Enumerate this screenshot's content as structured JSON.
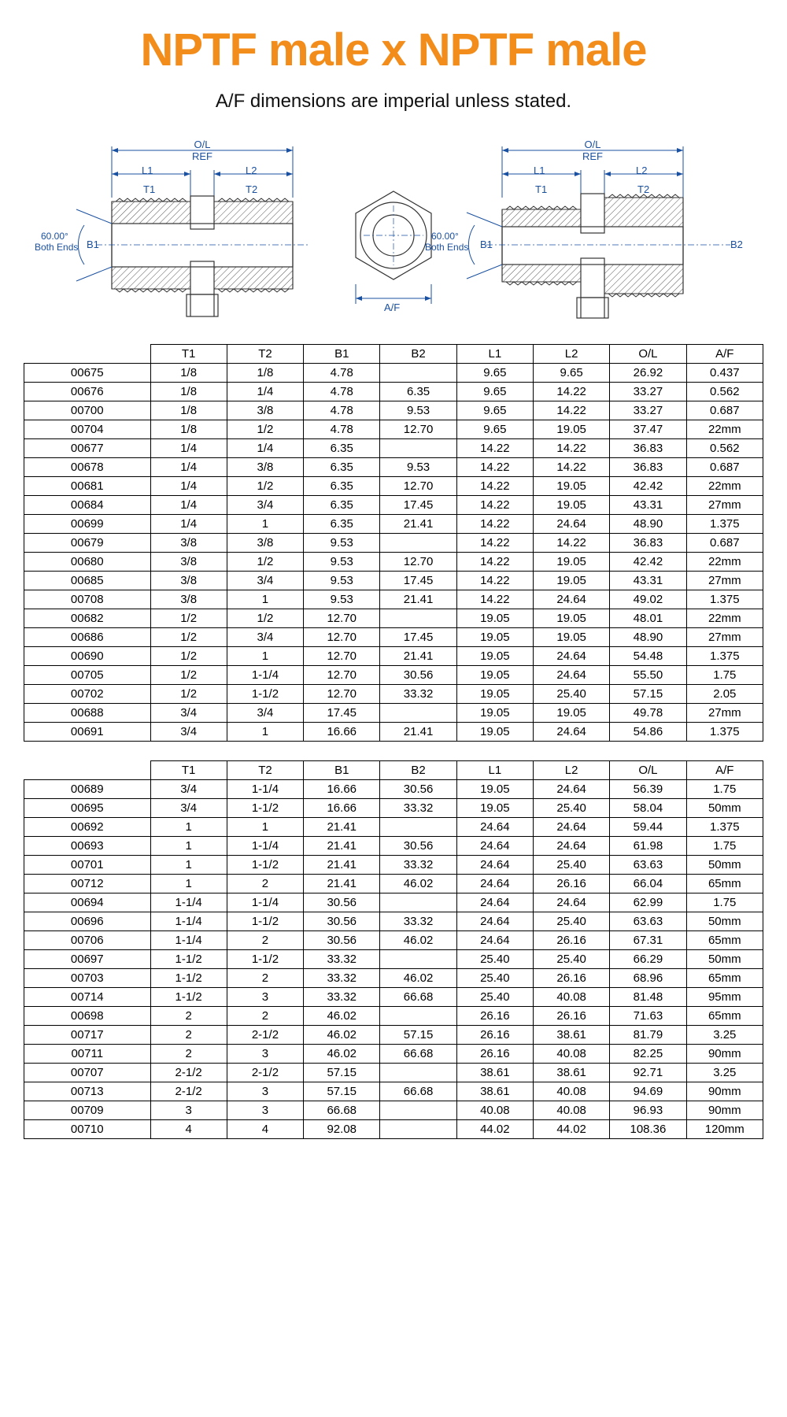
{
  "title": "NPTF male x NPTF male",
  "subtitle": "A/F dimensions are imperial unless stated.",
  "colors": {
    "title": "#f28c1a",
    "text": "#111111",
    "diagram_line": "#1a50a0",
    "border": "#000000",
    "background": "#ffffff"
  },
  "typography": {
    "title_fontsize": 58,
    "title_weight": 800,
    "subtitle_fontsize": 24,
    "table_fontsize": 15,
    "diagram_label_fontsize": 13
  },
  "diagram_labels": {
    "ol_ref": "O/L\nREF",
    "l1": "L1",
    "l2": "L2",
    "t1": "T1",
    "t2": "T2",
    "b1": "B1",
    "b2": "B2",
    "angle": "60.00°",
    "angle_ends": "Both Ends",
    "af": "A/F"
  },
  "table1": {
    "headers": [
      "",
      "T1",
      "T2",
      "B1",
      "B2",
      "L1",
      "L2",
      "O/L",
      "A/F"
    ],
    "rows": [
      [
        "00675",
        "1/8",
        "1/8",
        "4.78",
        "",
        "9.65",
        "9.65",
        "26.92",
        "0.437"
      ],
      [
        "00676",
        "1/8",
        "1/4",
        "4.78",
        "6.35",
        "9.65",
        "14.22",
        "33.27",
        "0.562"
      ],
      [
        "00700",
        "1/8",
        "3/8",
        "4.78",
        "9.53",
        "9.65",
        "14.22",
        "33.27",
        "0.687"
      ],
      [
        "00704",
        "1/8",
        "1/2",
        "4.78",
        "12.70",
        "9.65",
        "19.05",
        "37.47",
        "22mm"
      ],
      [
        "00677",
        "1/4",
        "1/4",
        "6.35",
        "",
        "14.22",
        "14.22",
        "36.83",
        "0.562"
      ],
      [
        "00678",
        "1/4",
        "3/8",
        "6.35",
        "9.53",
        "14.22",
        "14.22",
        "36.83",
        "0.687"
      ],
      [
        "00681",
        "1/4",
        "1/2",
        "6.35",
        "12.70",
        "14.22",
        "19.05",
        "42.42",
        "22mm"
      ],
      [
        "00684",
        "1/4",
        "3/4",
        "6.35",
        "17.45",
        "14.22",
        "19.05",
        "43.31",
        "27mm"
      ],
      [
        "00699",
        "1/4",
        "1",
        "6.35",
        "21.41",
        "14.22",
        "24.64",
        "48.90",
        "1.375"
      ],
      [
        "00679",
        "3/8",
        "3/8",
        "9.53",
        "",
        "14.22",
        "14.22",
        "36.83",
        "0.687"
      ],
      [
        "00680",
        "3/8",
        "1/2",
        "9.53",
        "12.70",
        "14.22",
        "19.05",
        "42.42",
        "22mm"
      ],
      [
        "00685",
        "3/8",
        "3/4",
        "9.53",
        "17.45",
        "14.22",
        "19.05",
        "43.31",
        "27mm"
      ],
      [
        "00708",
        "3/8",
        "1",
        "9.53",
        "21.41",
        "14.22",
        "24.64",
        "49.02",
        "1.375"
      ],
      [
        "00682",
        "1/2",
        "1/2",
        "12.70",
        "",
        "19.05",
        "19.05",
        "48.01",
        "22mm"
      ],
      [
        "00686",
        "1/2",
        "3/4",
        "12.70",
        "17.45",
        "19.05",
        "19.05",
        "48.90",
        "27mm"
      ],
      [
        "00690",
        "1/2",
        "1",
        "12.70",
        "21.41",
        "19.05",
        "24.64",
        "54.48",
        "1.375"
      ],
      [
        "00705",
        "1/2",
        "1-1/4",
        "12.70",
        "30.56",
        "19.05",
        "24.64",
        "55.50",
        "1.75"
      ],
      [
        "00702",
        "1/2",
        "1-1/2",
        "12.70",
        "33.32",
        "19.05",
        "25.40",
        "57.15",
        "2.05"
      ],
      [
        "00688",
        "3/4",
        "3/4",
        "17.45",
        "",
        "19.05",
        "19.05",
        "49.78",
        "27mm"
      ],
      [
        "00691",
        "3/4",
        "1",
        "16.66",
        "21.41",
        "19.05",
        "24.64",
        "54.86",
        "1.375"
      ]
    ]
  },
  "table2": {
    "headers": [
      "",
      "T1",
      "T2",
      "B1",
      "B2",
      "L1",
      "L2",
      "O/L",
      "A/F"
    ],
    "rows": [
      [
        "00689",
        "3/4",
        "1-1/4",
        "16.66",
        "30.56",
        "19.05",
        "24.64",
        "56.39",
        "1.75"
      ],
      [
        "00695",
        "3/4",
        "1-1/2",
        "16.66",
        "33.32",
        "19.05",
        "25.40",
        "58.04",
        "50mm"
      ],
      [
        "00692",
        "1",
        "1",
        "21.41",
        "",
        "24.64",
        "24.64",
        "59.44",
        "1.375"
      ],
      [
        "00693",
        "1",
        "1-1/4",
        "21.41",
        "30.56",
        "24.64",
        "24.64",
        "61.98",
        "1.75"
      ],
      [
        "00701",
        "1",
        "1-1/2",
        "21.41",
        "33.32",
        "24.64",
        "25.40",
        "63.63",
        "50mm"
      ],
      [
        "00712",
        "1",
        "2",
        "21.41",
        "46.02",
        "24.64",
        "26.16",
        "66.04",
        "65mm"
      ],
      [
        "00694",
        "1-1/4",
        "1-1/4",
        "30.56",
        "",
        "24.64",
        "24.64",
        "62.99",
        "1.75"
      ],
      [
        "00696",
        "1-1/4",
        "1-1/2",
        "30.56",
        "33.32",
        "24.64",
        "25.40",
        "63.63",
        "50mm"
      ],
      [
        "00706",
        "1-1/4",
        "2",
        "30.56",
        "46.02",
        "24.64",
        "26.16",
        "67.31",
        "65mm"
      ],
      [
        "00697",
        "1-1/2",
        "1-1/2",
        "33.32",
        "",
        "25.40",
        "25.40",
        "66.29",
        "50mm"
      ],
      [
        "00703",
        "1-1/2",
        "2",
        "33.32",
        "46.02",
        "25.40",
        "26.16",
        "68.96",
        "65mm"
      ],
      [
        "00714",
        "1-1/2",
        "3",
        "33.32",
        "66.68",
        "25.40",
        "40.08",
        "81.48",
        "95mm"
      ],
      [
        "00698",
        "2",
        "2",
        "46.02",
        "",
        "26.16",
        "26.16",
        "71.63",
        "65mm"
      ],
      [
        "00717",
        "2",
        "2-1/2",
        "46.02",
        "57.15",
        "26.16",
        "38.61",
        "81.79",
        "3.25"
      ],
      [
        "00711",
        "2",
        "3",
        "46.02",
        "66.68",
        "26.16",
        "40.08",
        "82.25",
        "90mm"
      ],
      [
        "00707",
        "2-1/2",
        "2-1/2",
        "57.15",
        "",
        "38.61",
        "38.61",
        "92.71",
        "3.25"
      ],
      [
        "00713",
        "2-1/2",
        "3",
        "57.15",
        "66.68",
        "38.61",
        "40.08",
        "94.69",
        "90mm"
      ],
      [
        "00709",
        "3",
        "3",
        "66.68",
        "",
        "40.08",
        "40.08",
        "96.93",
        "90mm"
      ],
      [
        "00710",
        "4",
        "4",
        "92.08",
        "",
        "44.02",
        "44.02",
        "108.36",
        "120mm"
      ]
    ]
  }
}
